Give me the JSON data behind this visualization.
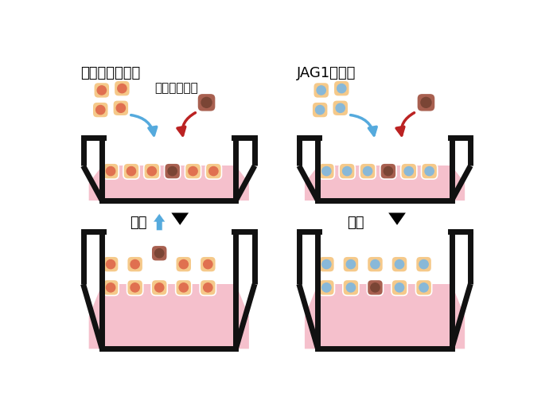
{
  "title_left": "正常な角化細胞",
  "title_right": "JAG1を抑制",
  "label_damage": "ダメージ細胞",
  "label_culture": "培養",
  "bg_color": "#ffffff",
  "cell_normal_fill": "#F5C98A",
  "cell_normal_nucleus": "#E07050",
  "cell_damage_fill": "#A86050",
  "cell_damage_nucleus": "#7A4535",
  "cell_jag_nucleus": "#88B8D8",
  "pink_fill": "#F5C0CC",
  "wall_color": "#111111",
  "arrow_blue": "#55AADD",
  "arrow_red": "#BB2222",
  "wall_lw": 5.0,
  "cell_size": 26,
  "cell_border": "white",
  "nucleus_ratio": 0.28
}
